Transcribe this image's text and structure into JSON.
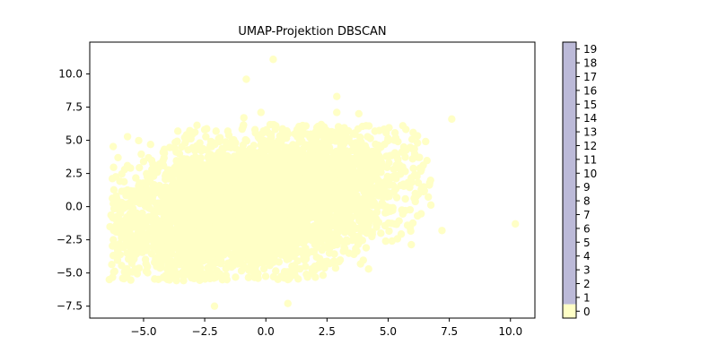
{
  "chart_data": {
    "type": "scatter",
    "title": "UMAP-Projektion DBSCAN",
    "xlabel": "",
    "ylabel": "",
    "xlim": [
      -7.2,
      11.0
    ],
    "ylim": [
      -8.4,
      12.4
    ],
    "x_ticks": [
      -5.0,
      -2.5,
      0.0,
      2.5,
      5.0,
      7.5,
      10.0
    ],
    "x_tick_labels": [
      "−5.0",
      "−2.5",
      "0.0",
      "2.5",
      "5.0",
      "7.5",
      "10.0"
    ],
    "y_ticks": [
      -7.5,
      -5.0,
      -2.5,
      0.0,
      2.5,
      5.0,
      7.5,
      10.0
    ],
    "y_tick_labels": [
      "−7.5",
      "−5.0",
      "−2.5",
      "0.0",
      "2.5",
      "5.0",
      "7.5",
      "10.0"
    ],
    "grid": false,
    "point_color": "#ffffc6",
    "series": [
      {
        "cluster": 0,
        "points": [
          [
            0.3,
            11.1
          ],
          [
            -0.8,
            9.6
          ],
          [
            2.9,
            8.3
          ],
          [
            7.6,
            6.6
          ],
          [
            10.2,
            -1.3
          ],
          [
            -6.4,
            -5.5
          ],
          [
            -2.1,
            -7.5
          ],
          [
            0.9,
            -7.3
          ],
          [
            0.9,
            -5.5
          ],
          [
            7.2,
            -1.8
          ],
          [
            -4.2,
            4.1
          ],
          [
            5.6,
            6.1
          ],
          [
            -0.2,
            7.1
          ],
          [
            2.9,
            7.1
          ],
          [
            3.8,
            7.0
          ],
          [
            6.2,
            4.8
          ],
          [
            6.3,
            2.9
          ],
          [
            6.7,
            1.8
          ],
          [
            6.2,
            -0.7
          ],
          [
            5.9,
            -1.6
          ],
          [
            -2.5,
            5.8
          ],
          [
            -1.9,
            4.9
          ],
          [
            -2.7,
            4.8
          ],
          [
            -5.5,
            0.7
          ],
          [
            -4.9,
            1.1
          ],
          [
            -6.0,
            -1.3
          ],
          [
            -5.8,
            -3.0
          ],
          [
            -4.9,
            -4.3
          ],
          [
            -4.1,
            -5.2
          ],
          [
            -3.0,
            -4.8
          ],
          [
            -0.6,
            -4.6
          ],
          [
            -1.0,
            -3.9
          ],
          [
            0.3,
            -4.2
          ],
          [
            1.3,
            -4.1
          ],
          [
            2.0,
            -4.5
          ],
          [
            2.6,
            -4.3
          ],
          [
            3.6,
            -3.6
          ],
          [
            4.1,
            -3.1
          ],
          [
            4.2,
            -4.7
          ],
          [
            4.9,
            -2.6
          ],
          [
            -0.9,
            6.7
          ],
          [
            1.5,
            6.1
          ],
          [
            2.3,
            5.4
          ],
          [
            4.1,
            6.1
          ],
          [
            5.4,
            4.9
          ],
          [
            6.0,
            3.6
          ],
          [
            5.2,
            1.6
          ],
          [
            5.7,
            -0.3
          ],
          [
            4.2,
            -1.4
          ],
          [
            3.2,
            -2.7
          ]
        ]
      }
    ],
    "point_cloud": {
      "cluster": 0,
      "center": [
        -0.5,
        0.1
      ],
      "spread": [
        3.0,
        2.2
      ],
      "count": 5000
    },
    "colorbar": {
      "min": 0,
      "max": 19,
      "ticks": [
        "0",
        "1",
        "2",
        "3",
        "4",
        "5",
        "6",
        "7",
        "8",
        "9",
        "10",
        "11",
        "12",
        "13",
        "14",
        "15",
        "16",
        "17",
        "18",
        "19"
      ],
      "color_zero": "#ffffc6",
      "color_rest": "#bcbad8"
    }
  }
}
